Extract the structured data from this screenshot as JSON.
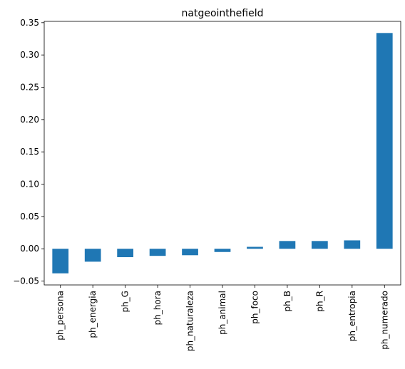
{
  "chart_data": {
    "type": "bar",
    "title": "natgeointhefield",
    "xlabel": "",
    "ylabel": "",
    "categories": [
      "ph_persona",
      "ph_energia",
      "ph_G",
      "ph_hora",
      "ph_naturaleza",
      "ph_animal",
      "ph_foco",
      "ph_B",
      "ph_R",
      "ph_entropia",
      "ph_numerado"
    ],
    "values": [
      -0.038,
      -0.02,
      -0.013,
      -0.011,
      -0.01,
      -0.005,
      0.003,
      0.012,
      0.012,
      0.013,
      0.334
    ],
    "ylim": [
      -0.056,
      0.352
    ],
    "yticks": [
      -0.05,
      0.0,
      0.05,
      0.1,
      0.15,
      0.2,
      0.25,
      0.3,
      0.35
    ],
    "ytick_labels": [
      "−0.05",
      "0.00",
      "0.05",
      "0.10",
      "0.15",
      "0.20",
      "0.25",
      "0.30",
      "0.35"
    ],
    "bar_color": "#1f77b4",
    "grid": false,
    "legend": "none"
  }
}
